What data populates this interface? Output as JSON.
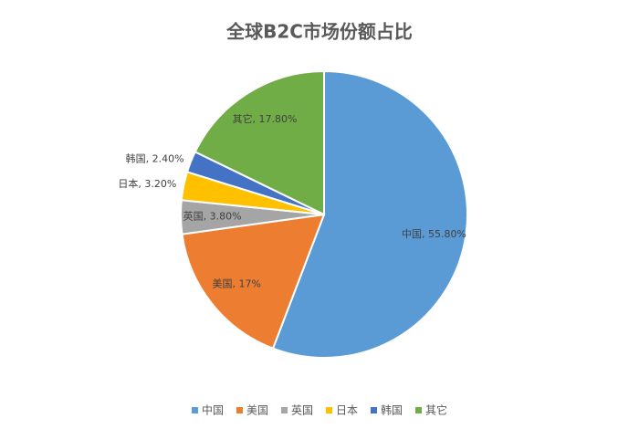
{
  "chart_data": {
    "type": "pie",
    "title": "全球B2C市场份额占比",
    "categories": [
      "中国",
      "美国",
      "英国",
      "日本",
      "韩国",
      "其它"
    ],
    "values": [
      55.8,
      17,
      3.8,
      3.2,
      2.4,
      17.8
    ],
    "value_labels": [
      "中国, 55.80%",
      "美国, 17%",
      "英国, 3.80%",
      "日本, 3.20%",
      "韩国, 2.40%",
      "其它, 17.80%"
    ],
    "colors": [
      "#5b9bd5",
      "#ed7d31",
      "#a5a5a5",
      "#ffc000",
      "#4472c4",
      "#70ad47"
    ],
    "legend": "bottom"
  }
}
